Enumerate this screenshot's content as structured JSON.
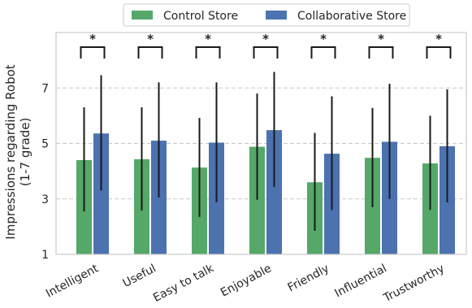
{
  "chart_data": {
    "type": "bar",
    "categories": [
      "Intelligent",
      "Useful",
      "Easy to talk",
      "Enjoyable",
      "Friendly",
      "Influential",
      "Trustworthy"
    ],
    "series": [
      {
        "name": "Control Store",
        "color": "#55a868",
        "values": [
          4.4,
          4.43,
          4.13,
          4.88,
          3.6,
          4.48,
          4.28
        ],
        "error_low": [
          2.55,
          2.58,
          2.35,
          2.97,
          1.85,
          2.7,
          2.6
        ],
        "error_high": [
          6.3,
          6.3,
          5.92,
          6.8,
          5.38,
          6.28,
          6.0
        ]
      },
      {
        "name": "Collaborative Store",
        "color": "#4c72b0",
        "values": [
          5.36,
          5.1,
          5.03,
          5.48,
          4.63,
          5.06,
          4.9
        ],
        "error_low": [
          3.3,
          3.05,
          2.88,
          3.43,
          2.6,
          3.0,
          2.87
        ],
        "error_high": [
          7.46,
          7.2,
          7.2,
          7.58,
          6.7,
          7.15,
          6.95
        ]
      }
    ],
    "significance": [
      "*",
      "*",
      "*",
      "*",
      "*",
      "*",
      "*"
    ],
    "ylabel_line1": "Impressions regarding Robot",
    "ylabel_line2": "(1-7 grade)",
    "yticks": [
      1,
      3,
      5,
      7
    ],
    "ylim": [
      1,
      9
    ],
    "grid": "horizontal dashed",
    "legend_position": "top-center"
  }
}
